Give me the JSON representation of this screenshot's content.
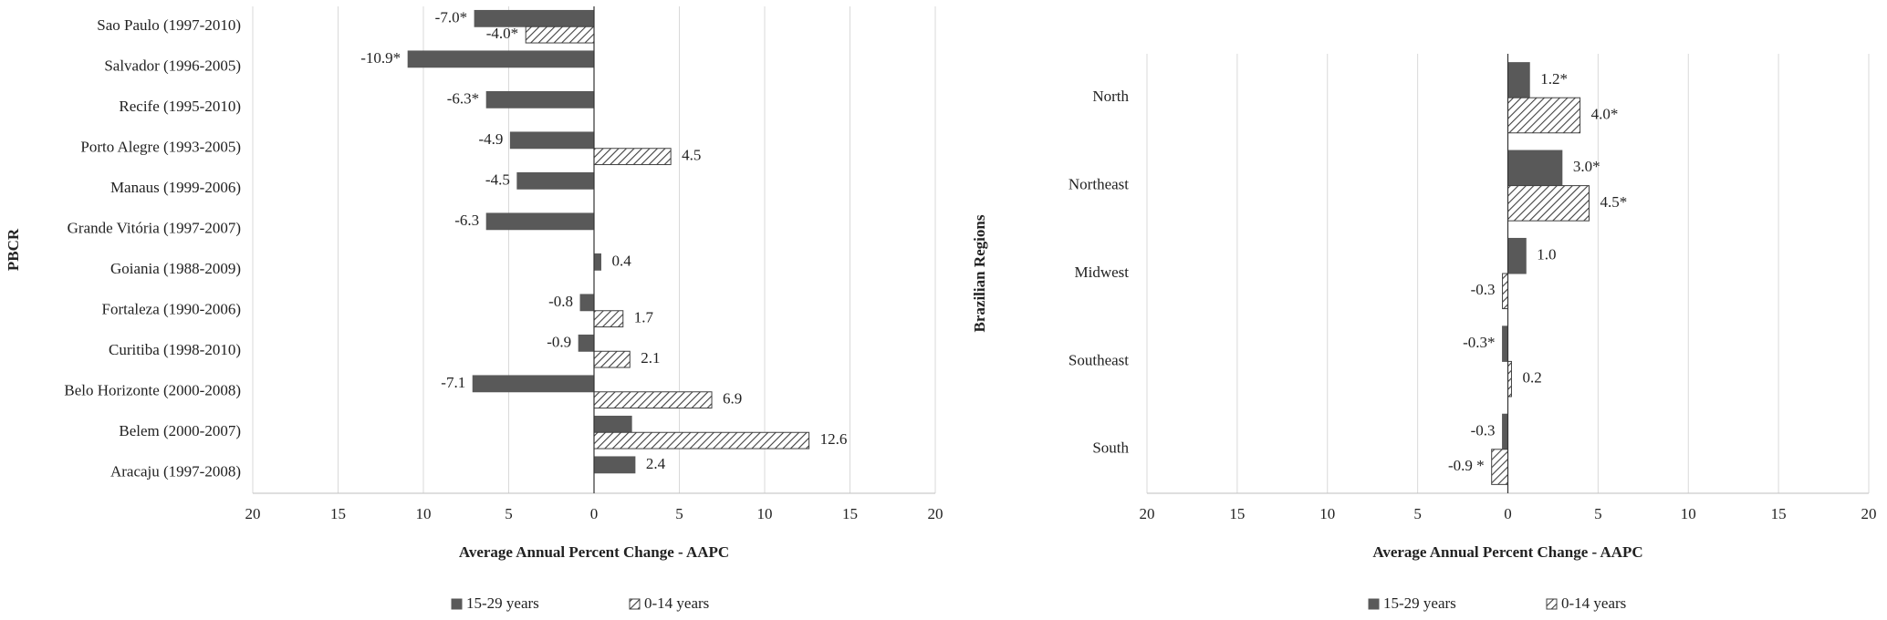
{
  "chart_data": [
    {
      "type": "bar",
      "orientation": "horizontal",
      "y_label": "PBCR",
      "x_label": "Average Annual Percent Change - AAPC",
      "categories": [
        "Sao Paulo (1997-2010)",
        "Salvador (1996-2005)",
        "Recife (1995-2010)",
        "Porto Alegre (1993-2005)",
        "Manaus (1999-2006)",
        "Grande Vitória (1997-2007)",
        "Goiania (1988-2009)",
        "Fortaleza (1990-2006)",
        "Curitiba (1998-2010)",
        "Belo Horizonte (2000-2008)",
        "Belem (2000-2007)",
        "Aracaju (1997-2008)"
      ],
      "series": [
        {
          "name": "15-29 years",
          "color": "#595959",
          "pattern": "solid",
          "values": [
            -7.0,
            -10.9,
            -6.3,
            -4.9,
            -4.5,
            -6.3,
            0.4,
            -0.8,
            -0.9,
            -7.1,
            2.2,
            2.4
          ],
          "value_labels": [
            "-7.0*",
            "-10.9*",
            "-6.3*",
            "-4.9",
            "-4.5",
            "-6.3",
            "0.4",
            "-0.8",
            "-0.9",
            "-7.1",
            null,
            "2.4"
          ]
        },
        {
          "name": "0-14 years",
          "color": "#404040",
          "pattern": "hatch",
          "values": [
            -4.0,
            null,
            null,
            4.5,
            null,
            null,
            null,
            1.7,
            2.1,
            6.9,
            12.6,
            null
          ],
          "value_labels": [
            "-4.0*",
            null,
            null,
            "4.5",
            null,
            null,
            null,
            "1.7",
            "2.1",
            "6.9",
            "12.6",
            null
          ]
        }
      ],
      "xlim": [
        -20,
        20
      ],
      "xticks": [
        {
          "value": -20,
          "label": "20"
        },
        {
          "value": -15,
          "label": "15"
        },
        {
          "value": -10,
          "label": "10"
        },
        {
          "value": -5,
          "label": "5"
        },
        0,
        5,
        10,
        15,
        20
      ],
      "grid": true,
      "legend": "bottom"
    },
    {
      "type": "bar",
      "orientation": "horizontal",
      "y_label": "Brazilian Regions",
      "x_label": "Average Annual Percent Change - AAPC",
      "categories": [
        "North",
        "Northeast",
        "Midwest",
        "Southeast",
        "South"
      ],
      "series": [
        {
          "name": "15-29 years",
          "color": "#595959",
          "pattern": "solid",
          "values": [
            1.2,
            3.0,
            1.0,
            -0.3,
            -0.3
          ],
          "value_labels": [
            "1.2*",
            "3.0*",
            "1.0",
            "-0.3*",
            "-0.3"
          ]
        },
        {
          "name": "0-14 years",
          "color": "#404040",
          "pattern": "hatch",
          "values": [
            4.0,
            4.5,
            -0.3,
            0.2,
            -0.9
          ],
          "value_labels": [
            "4.0*",
            "4.5*",
            "-0.3",
            "0.2",
            "-0.9 *"
          ]
        }
      ],
      "xlim": [
        -20,
        20
      ],
      "xticks": [
        {
          "value": -20,
          "label": "20"
        },
        {
          "value": -15,
          "label": "15"
        },
        {
          "value": -10,
          "label": "10"
        },
        {
          "value": -5,
          "label": "5"
        },
        0,
        5,
        10,
        15,
        20
      ],
      "grid": true,
      "legend": "bottom"
    }
  ]
}
